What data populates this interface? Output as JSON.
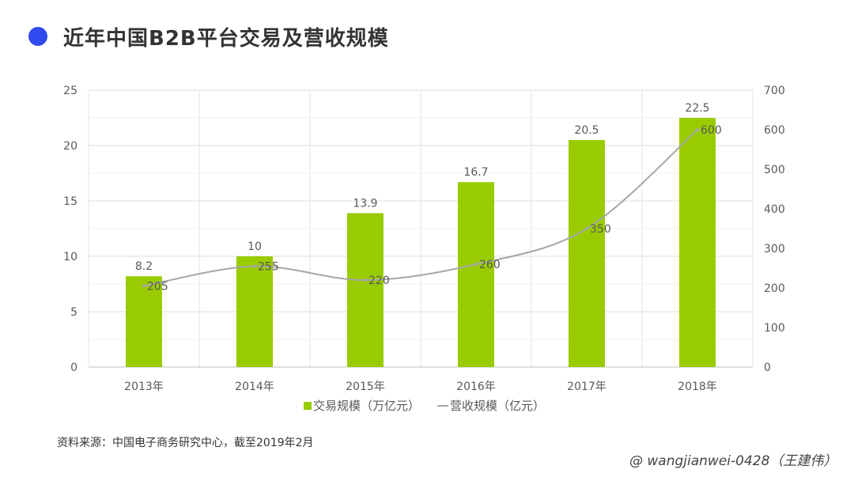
{
  "page": {
    "title": "近年中国B2B平台交易及营收规模",
    "source": "资料来源：中国电子商务研究中心，截至2019年2月",
    "watermark": "@ wangjianwei-0428（王建伟）"
  },
  "colors": {
    "bar": "#99cc00",
    "line": "#a6a6a6",
    "dot": "#2f4bf0",
    "grid": "#e6e6e6",
    "text": "#595959"
  },
  "chart_data": {
    "type": "bar+line",
    "categories": [
      "2013年",
      "2014年",
      "2015年",
      "2016年",
      "2017年",
      "2018年"
    ],
    "series": [
      {
        "name": "交易规模（万亿元）",
        "type": "bar",
        "axis": "left",
        "values": [
          8.2,
          10,
          13.9,
          16.7,
          20.5,
          22.5
        ],
        "labels": [
          "8.2",
          "10",
          "13.9",
          "16.7",
          "20.5",
          "22.5"
        ]
      },
      {
        "name": "营收规模（亿元）",
        "type": "line",
        "axis": "right",
        "values": [
          205,
          255,
          220,
          260,
          350,
          600
        ],
        "labels": [
          "205",
          "255",
          "220",
          "260",
          "350",
          "600"
        ]
      }
    ],
    "y_left": {
      "min": 0,
      "max": 25,
      "ticks": [
        "0",
        "5",
        "10",
        "15",
        "20",
        "25"
      ]
    },
    "y_right": {
      "min": 0,
      "max": 700,
      "ticks": [
        "0",
        "100",
        "200",
        "300",
        "400",
        "500",
        "600",
        "700"
      ]
    },
    "legend": {
      "position": "bottom"
    }
  }
}
